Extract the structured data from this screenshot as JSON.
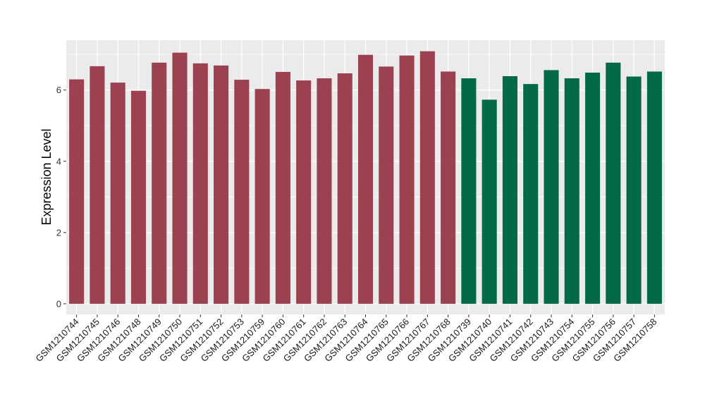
{
  "chart_data": {
    "type": "bar",
    "title": "",
    "xlabel": "",
    "ylabel": "Expression Level",
    "ylim": [
      -0.3,
      7.4
    ],
    "yticks": [
      0,
      2,
      4,
      6
    ],
    "grid": true,
    "colors": {
      "group_1": "#9b4150",
      "group_2": "#046a45",
      "panel_bg": "#ebebeb",
      "grid": "#ffffff"
    },
    "categories": [
      "GSM1210744",
      "GSM1210745",
      "GSM1210746",
      "GSM1210748",
      "GSM1210749",
      "GSM1210750",
      "GSM1210751",
      "GSM1210752",
      "GSM1210753",
      "GSM1210759",
      "GSM1210760",
      "GSM1210761",
      "GSM1210762",
      "GSM1210763",
      "GSM1210764",
      "GSM1210765",
      "GSM1210766",
      "GSM1210767",
      "GSM1210768",
      "GSM1210739",
      "GSM1210740",
      "GSM1210741",
      "GSM1210742",
      "GSM1210743",
      "GSM1210754",
      "GSM1210755",
      "GSM1210756",
      "GSM1210757",
      "GSM1210758"
    ],
    "values": [
      6.3,
      6.67,
      6.21,
      5.98,
      6.77,
      7.05,
      6.75,
      6.69,
      6.29,
      6.03,
      6.51,
      6.27,
      6.33,
      6.47,
      6.99,
      6.66,
      6.97,
      7.09,
      6.52,
      6.33,
      5.73,
      6.39,
      6.17,
      6.56,
      6.33,
      6.49,
      6.77,
      6.38,
      6.52
    ],
    "groups": [
      1,
      1,
      1,
      1,
      1,
      1,
      1,
      1,
      1,
      1,
      1,
      1,
      1,
      1,
      1,
      1,
      1,
      1,
      1,
      2,
      2,
      2,
      2,
      2,
      2,
      2,
      2,
      2,
      2
    ]
  }
}
